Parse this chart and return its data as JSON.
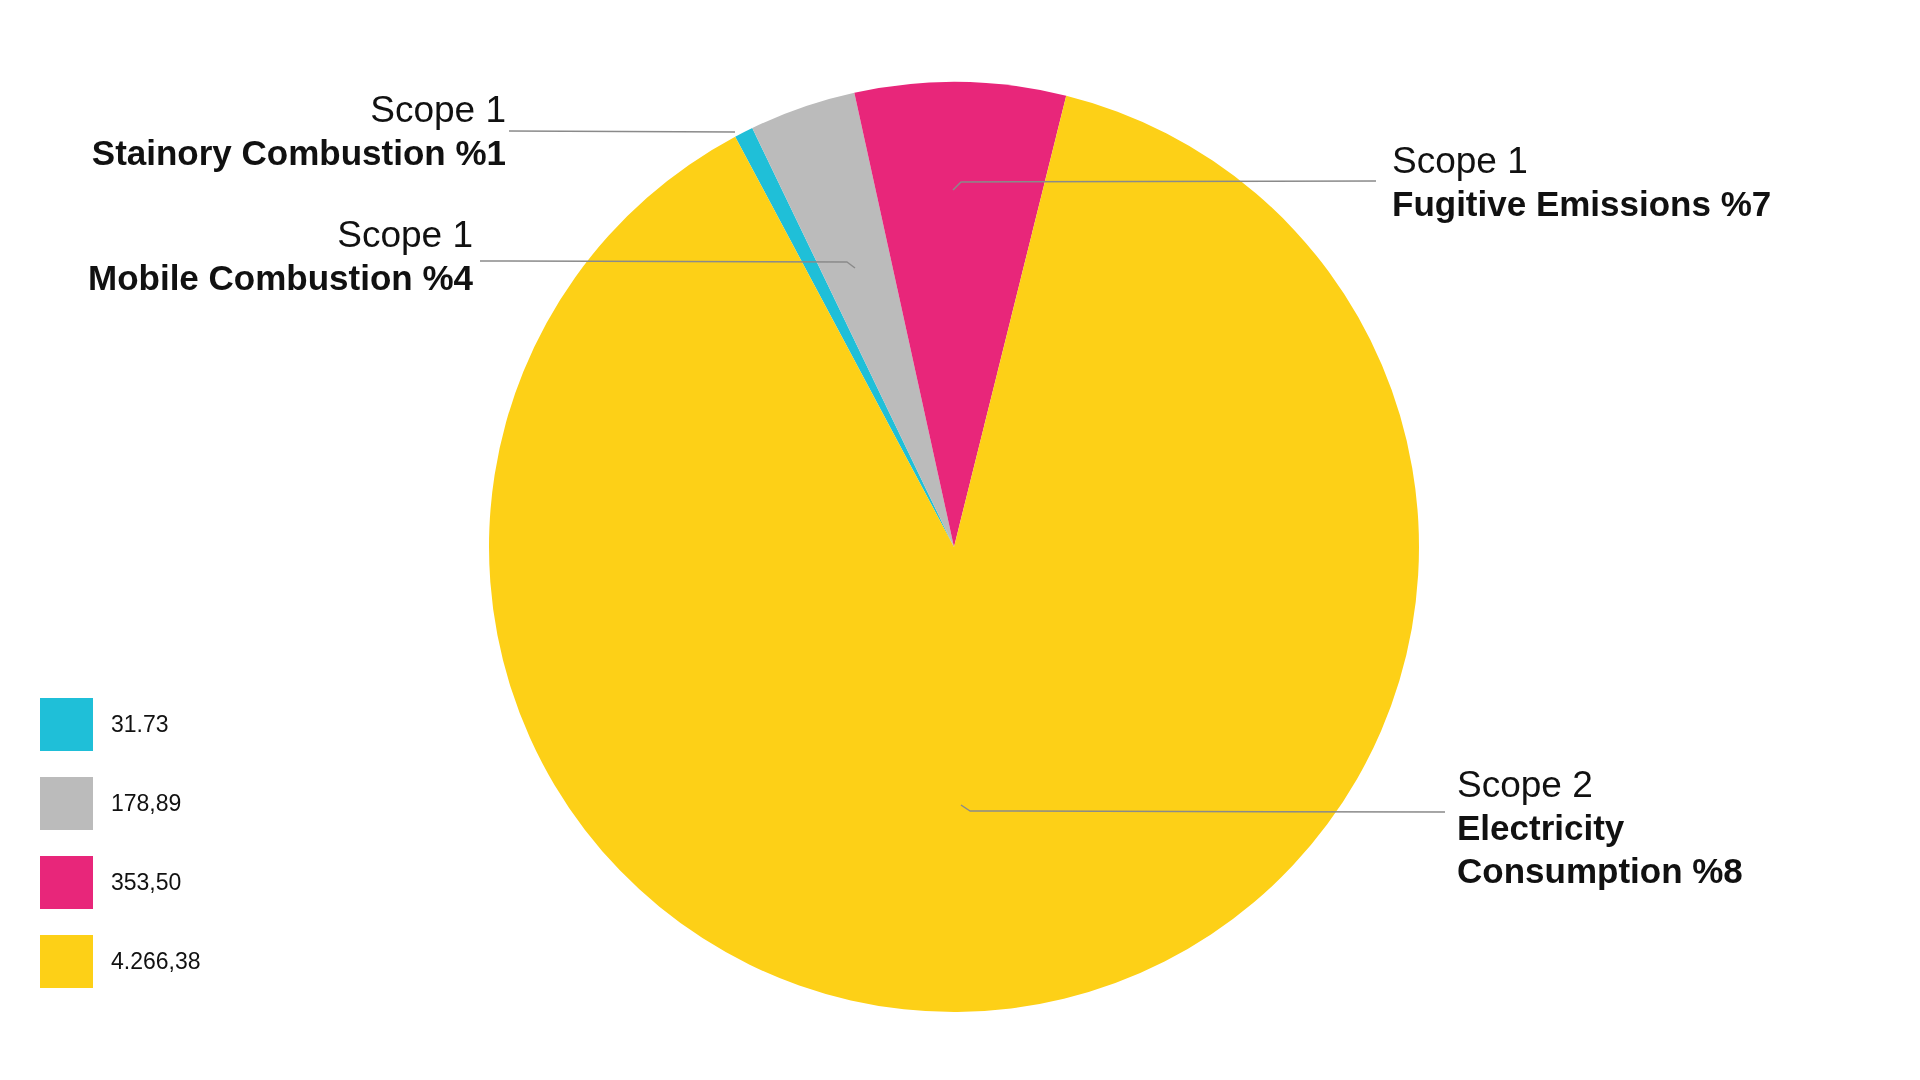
{
  "chart_data": {
    "type": "pie",
    "categories": [
      "31.73",
      "178,89",
      "353,50",
      "4.266,38"
    ],
    "values": [
      31.73,
      178.89,
      353.5,
      4266.38
    ],
    "colors": [
      "#1fbfd8",
      "#bbbbbb",
      "#e8267a",
      "#fdd017"
    ],
    "legend": "bottom left",
    "annotations": [
      "Scope 1\nStainory Combustion %1",
      "Scope 1\nMobile Combustion %4",
      "Scope 1\nFugitive Emissions %7",
      "Scope 2\nElectricity\nConsumption %8"
    ]
  }
}
